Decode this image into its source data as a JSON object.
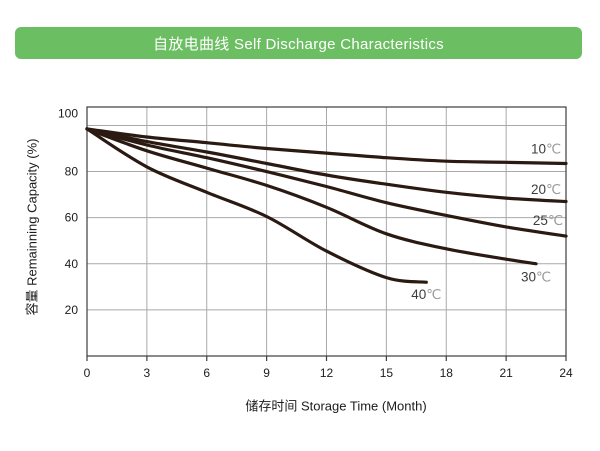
{
  "title": "自放电曲线 Self Discharge Characteristics",
  "colors": {
    "banner_bg": "#6cbe63",
    "banner_text": "#ffffff",
    "curve": "#2b1a12",
    "grid": "#a9a9a9",
    "frame": "#3c3c3c",
    "label_number": "#3d3d3d",
    "label_degree": "#9a9a9a"
  },
  "chart_data": {
    "type": "line",
    "title": "自放电曲线 Self Discharge Characteristics",
    "xlabel": "储存时间 Storage Time (Month)",
    "ylabel": "容量 Remainning Capacity (%)",
    "xlim": [
      0,
      24
    ],
    "ylim": [
      0,
      108
    ],
    "x_ticks": [
      0,
      3,
      6,
      9,
      12,
      15,
      18,
      21,
      24
    ],
    "y_ticks": [
      20,
      40,
      60,
      80,
      100
    ],
    "grid": true,
    "legend_position": "inline-right",
    "series": [
      {
        "name": "10℃",
        "points": [
          [
            0,
            98.5
          ],
          [
            3,
            95
          ],
          [
            6,
            92.5
          ],
          [
            9,
            90
          ],
          [
            12,
            88
          ],
          [
            15,
            86
          ],
          [
            18,
            84.5
          ],
          [
            21,
            84
          ],
          [
            24,
            83.5
          ]
        ],
        "label_at": [
          23,
          90
        ]
      },
      {
        "name": "20℃",
        "points": [
          [
            0,
            98.5
          ],
          [
            3,
            93
          ],
          [
            6,
            88.5
          ],
          [
            9,
            83.5
          ],
          [
            12,
            78.5
          ],
          [
            15,
            74.5
          ],
          [
            18,
            71
          ],
          [
            21,
            68.5
          ],
          [
            24,
            67
          ]
        ],
        "label_at": [
          23,
          72.5
        ]
      },
      {
        "name": "25℃",
        "points": [
          [
            0,
            98.5
          ],
          [
            3,
            91.5
          ],
          [
            6,
            86
          ],
          [
            9,
            80
          ],
          [
            12,
            73.5
          ],
          [
            15,
            66.5
          ],
          [
            18,
            61
          ],
          [
            21,
            56
          ],
          [
            24,
            52
          ]
        ],
        "label_at": [
          23.1,
          59
        ]
      },
      {
        "name": "30℃",
        "points": [
          [
            0,
            98.5
          ],
          [
            3,
            89
          ],
          [
            6,
            81.5
          ],
          [
            9,
            74
          ],
          [
            12,
            64.5
          ],
          [
            15,
            53
          ],
          [
            18,
            46.5
          ],
          [
            21,
            42
          ],
          [
            22.5,
            40
          ]
        ],
        "label_at": [
          22.5,
          34.5
        ]
      },
      {
        "name": "40℃",
        "points": [
          [
            0,
            98.5
          ],
          [
            3,
            82
          ],
          [
            6,
            71
          ],
          [
            9,
            60.5
          ],
          [
            12,
            45.5
          ],
          [
            15,
            34
          ],
          [
            17,
            32
          ]
        ],
        "label_at": [
          17,
          27
        ]
      }
    ]
  }
}
